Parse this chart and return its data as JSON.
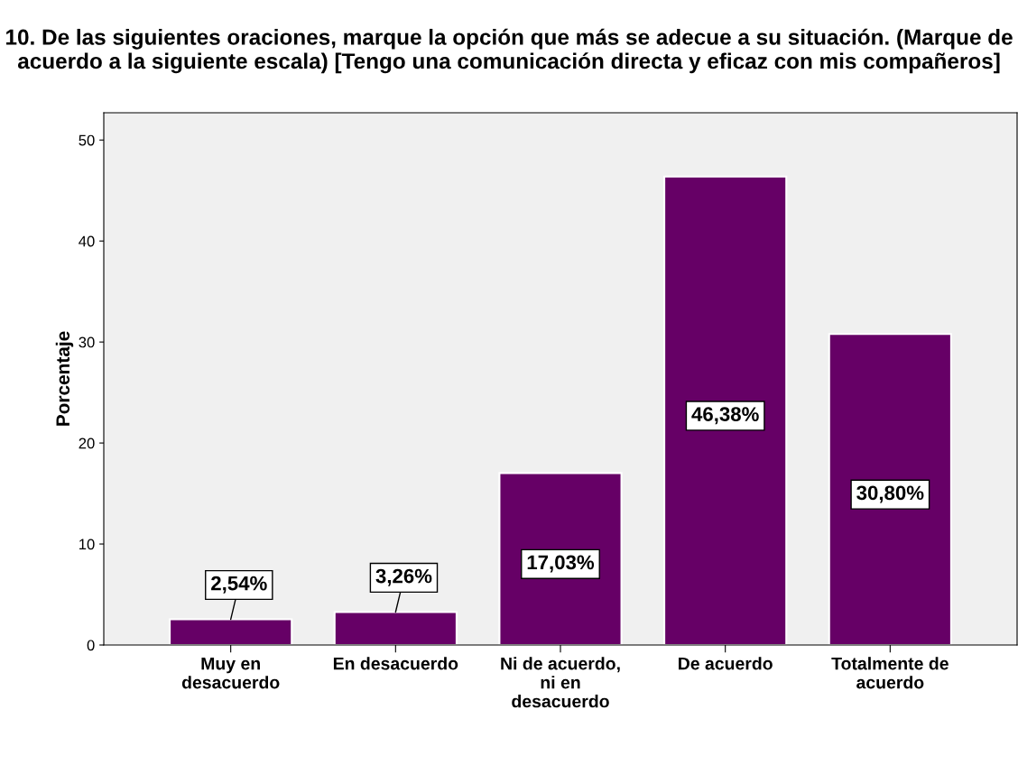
{
  "chart_data": {
    "type": "bar",
    "title": "10. De las siguientes oraciones, marque la opción que más se adecue a su situación. (Marque de acuerdo a la siguiente escala) [Tengo una comunicación directa y eficaz con mis compañeros]",
    "ylabel": "Porcentaje",
    "categories": [
      "Muy en\ndesacuerdo",
      "En desacuerdo",
      "Ni de acuerdo,\nni en\ndesacuerdo",
      "De acuerdo",
      "Totalmente de\nacuerdo"
    ],
    "values": [
      2.54,
      3.26,
      17.03,
      46.38,
      30.8
    ],
    "value_labels": [
      "2,54%",
      "3,26%",
      "17,03%",
      "46,38%",
      "30,80%"
    ],
    "color": "#660066",
    "ylim": [
      0,
      52.7
    ],
    "yticks": [
      0,
      10,
      20,
      30,
      40,
      50
    ],
    "grid": false,
    "legend": false
  }
}
